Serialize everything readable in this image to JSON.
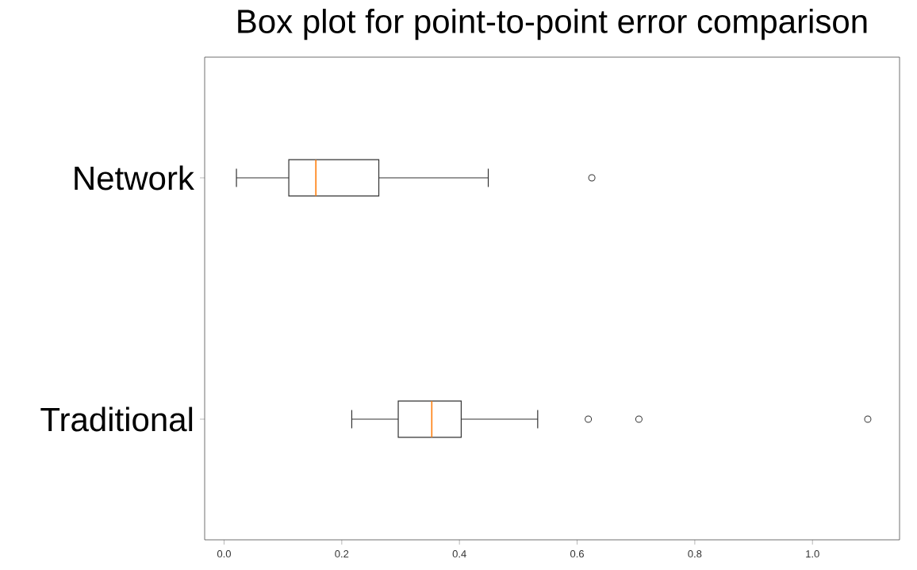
{
  "chart_data": {
    "type": "box",
    "title": "Box plot for point-to-point error comparison",
    "orientation": "horizontal",
    "categories": [
      "Network",
      "Traditional"
    ],
    "boxes": [
      {
        "low": 0.021,
        "q1": 0.11,
        "median": 0.156,
        "q3": 0.263,
        "high": 0.449,
        "outliers": [
          0.625
        ]
      },
      {
        "low": 0.217,
        "q1": 0.296,
        "median": 0.353,
        "q3": 0.403,
        "high": 0.533,
        "outliers": [
          0.619,
          0.705,
          1.094
        ]
      }
    ],
    "color": "#333333",
    "xlim": [
      -0.033,
      1.148
    ],
    "xticks": [
      {
        "value": 0,
        "label": "0.0"
      },
      0.2,
      0.4,
      0.6,
      0.8,
      {
        "value": 1.0,
        "label": "1.0"
      }
    ],
    "grid": false
  }
}
